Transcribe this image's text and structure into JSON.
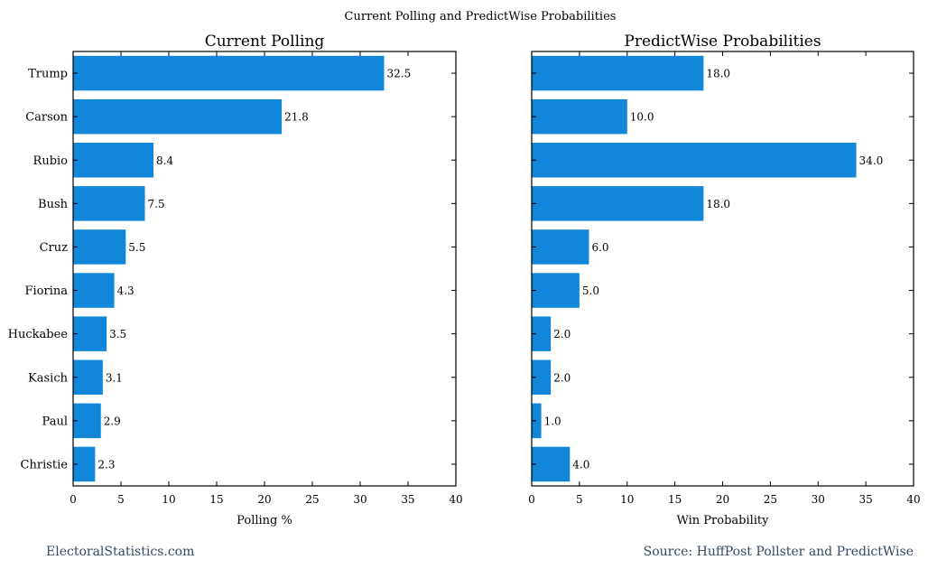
{
  "figure_title": "Current Polling and PredictWise Probabilities",
  "footer_left": "ElectoralStatistics.com",
  "footer_right": "Source: HuffPost Pollster and PredictWise",
  "bar_color": "#1187d9",
  "chart_data": [
    {
      "type": "bar",
      "orientation": "horizontal",
      "title": "Current Polling",
      "xlabel": "Polling %",
      "categories": [
        "Trump",
        "Carson",
        "Rubio",
        "Bush",
        "Cruz",
        "Fiorina",
        "Huckabee",
        "Kasich",
        "Paul",
        "Christie"
      ],
      "values": [
        32.5,
        21.8,
        8.4,
        7.5,
        5.5,
        4.3,
        3.5,
        3.1,
        2.9,
        2.3
      ],
      "value_labels": [
        "32.5",
        "21.8",
        "8.4",
        "7.5",
        "5.5",
        "4.3",
        "3.5",
        "3.1",
        "2.9",
        "2.3"
      ],
      "xlim": [
        0,
        40
      ],
      "xticks": [
        0,
        5,
        10,
        15,
        20,
        25,
        30,
        35,
        40
      ],
      "show_category_labels": true,
      "grid": false
    },
    {
      "type": "bar",
      "orientation": "horizontal",
      "title": "PredictWise Probabilities",
      "xlabel": "Win Probability",
      "categories": [
        "Trump",
        "Carson",
        "Rubio",
        "Bush",
        "Cruz",
        "Fiorina",
        "Huckabee",
        "Kasich",
        "Paul",
        "Christie"
      ],
      "values": [
        18.0,
        10.0,
        34.0,
        18.0,
        6.0,
        5.0,
        2.0,
        2.0,
        1.0,
        4.0
      ],
      "value_labels": [
        "18.0",
        "10.0",
        "34.0",
        "18.0",
        "6.0",
        "5.0",
        "2.0",
        "2.0",
        "1.0",
        "4.0"
      ],
      "xlim": [
        0,
        40
      ],
      "xticks": [
        0,
        5,
        10,
        15,
        20,
        25,
        30,
        35,
        40
      ],
      "show_category_labels": false,
      "grid": false
    }
  ]
}
